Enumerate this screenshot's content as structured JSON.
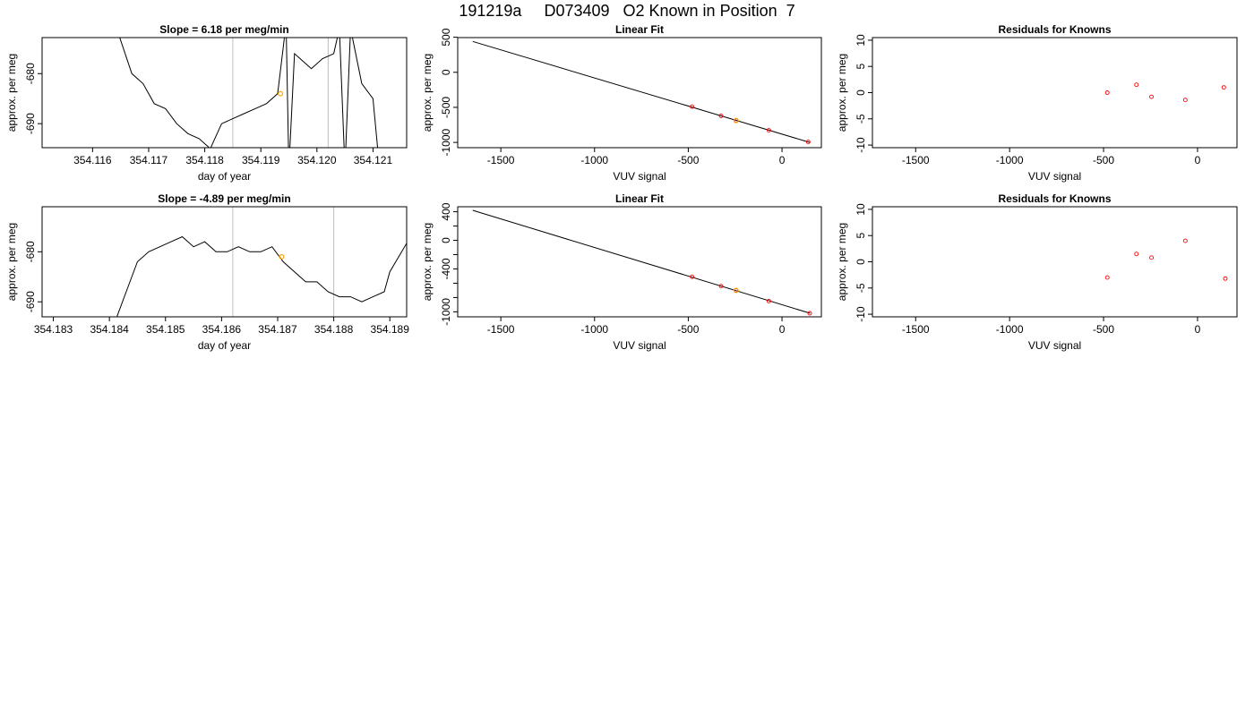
{
  "page_title": "191219a     D073409   O2 Known in Position  7",
  "chart_data": [
    {
      "id": "r1-trace",
      "type": "line",
      "title": "Slope =  6.18  per meg/min",
      "xlabel": "day of year",
      "ylabel": "approx. per meg",
      "xlim": [
        354.1151,
        354.1216
      ],
      "ylim": [
        -694.8,
        -672.8
      ],
      "xticks": [
        354.116,
        354.117,
        354.118,
        354.119,
        354.12,
        354.121
      ],
      "xtick_labels": [
        "354.116",
        "354.117",
        "354.118",
        "354.119",
        "354.120",
        "354.121"
      ],
      "yticks": [
        -690,
        -680
      ],
      "ytick_labels": [
        "-690",
        "-680"
      ],
      "vlines": [
        354.1185,
        354.1202
      ],
      "x": [
        354.1164,
        354.1167,
        354.1169,
        354.1171,
        354.1173,
        354.1175,
        354.1177,
        354.1179,
        354.1181,
        354.1183,
        354.1185,
        354.1187,
        354.1189,
        354.1191,
        354.1193,
        354.11945,
        354.1195,
        354.1196,
        354.1197,
        354.1199,
        354.1201,
        354.1203,
        354.1204,
        354.1205,
        354.1206,
        354.1208,
        354.121,
        354.1211
      ],
      "y": [
        -670,
        -680,
        -682,
        -686,
        -687,
        -690,
        -692,
        -693,
        -695,
        -690,
        -689,
        -688,
        -687,
        -686,
        -684,
        -670,
        -699,
        -676,
        -677,
        -679,
        -677,
        -676,
        -671,
        -699,
        -671,
        -682,
        -685,
        -697
      ],
      "highlight_points": [
        {
          "x": 354.11935,
          "y": -684
        }
      ],
      "colors": {
        "line": "#000000",
        "highlight": "#ffa500",
        "vline": "#bebebe"
      }
    },
    {
      "id": "r1-fit",
      "type": "line",
      "title": "Linear Fit",
      "xlabel": "VUV signal",
      "ylabel": "approx. per meg",
      "xlim": [
        -1730,
        210
      ],
      "ylim": [
        -1075,
        495
      ],
      "xticks": [
        -1500,
        -1000,
        -500,
        0
      ],
      "xtick_labels": [
        "-1500",
        "-1000",
        "-500",
        "0"
      ],
      "yticks": [
        -1000,
        -500,
        0,
        500
      ],
      "ytick_labels": [
        "-1000",
        "-500",
        "0",
        "500"
      ],
      "line": {
        "x": [
          -1650,
          148
        ],
        "y": [
          440,
          -1000
        ]
      },
      "points": [
        {
          "x": -480,
          "y": -490
        },
        {
          "x": -325,
          "y": -622
        },
        {
          "x": -245,
          "y": -688
        },
        {
          "x": -70,
          "y": -827
        },
        {
          "x": 140,
          "y": -993
        }
      ],
      "highlight_points": [
        {
          "x": -245,
          "y": -688
        }
      ],
      "colors": {
        "line": "#000000",
        "points": "#ff0000",
        "highlight": "#ffa500"
      }
    },
    {
      "id": "r1-resid",
      "type": "scatter",
      "title": "Residuals for Knowns",
      "xlabel": "VUV signal",
      "ylabel": "approx. per meg",
      "xlim": [
        -1730,
        210
      ],
      "ylim": [
        -10.5,
        10.5
      ],
      "xticks": [
        -1500,
        -1000,
        -500,
        0
      ],
      "xtick_labels": [
        "-1500",
        "-1000",
        "-500",
        "0"
      ],
      "yticks": [
        -10,
        -5,
        0,
        5,
        10
      ],
      "ytick_labels": [
        "-10",
        "-5",
        "0",
        "5",
        "10"
      ],
      "points": [
        {
          "x": -480,
          "y": 0
        },
        {
          "x": -325,
          "y": 1.5
        },
        {
          "x": -245,
          "y": -0.8
        },
        {
          "x": -65,
          "y": -1.4
        },
        {
          "x": 140,
          "y": 1
        }
      ],
      "colors": {
        "points": "#ff0000"
      }
    },
    {
      "id": "r2-trace",
      "type": "line",
      "title": "Slope =  -4.89  per meg/min",
      "xlabel": "day of year",
      "ylabel": "approx. per meg",
      "xlim": [
        354.1828,
        354.1893
      ],
      "ylim": [
        -693,
        -671
      ],
      "xticks": [
        354.183,
        354.184,
        354.185,
        354.186,
        354.187,
        354.188,
        354.189
      ],
      "xtick_labels": [
        "354.183",
        "354.184",
        "354.185",
        "354.186",
        "354.187",
        "354.188",
        "354.189"
      ],
      "yticks": [
        -690,
        -680
      ],
      "ytick_labels": [
        "-690",
        "-680"
      ],
      "vlines": [
        354.1862,
        354.188
      ],
      "x": [
        354.1841,
        354.1843,
        354.1845,
        354.1847,
        354.1849,
        354.1851,
        354.1853,
        354.1855,
        354.1857,
        354.1859,
        354.1861,
        354.1863,
        354.1865,
        354.1867,
        354.1869,
        354.1871,
        354.1873,
        354.1875,
        354.1877,
        354.1879,
        354.1881,
        354.1883,
        354.1885,
        354.1887,
        354.1889,
        354.189,
        354.19
      ],
      "y": [
        -694,
        -688,
        -682,
        -680,
        -679,
        -678,
        -677,
        -679,
        -678,
        -680,
        -680,
        -679,
        -680,
        -680,
        -679,
        -682,
        -684,
        -686,
        -686,
        -688,
        -689,
        -689,
        -690,
        -689,
        -688,
        -684,
        -665
      ],
      "highlight_points": [
        {
          "x": 354.18707,
          "y": -681
        }
      ],
      "colors": {
        "line": "#000000",
        "highlight": "#ffa500",
        "vline": "#bebebe"
      }
    },
    {
      "id": "r2-fit",
      "type": "line",
      "title": "Linear Fit",
      "xlabel": "VUV signal",
      "ylabel": "approx. per meg",
      "xlim": [
        -1730,
        210
      ],
      "ylim": [
        -1070,
        470
      ],
      "xticks": [
        -1500,
        -1000,
        -500,
        0
      ],
      "xtick_labels": [
        "-1500",
        "-1000",
        "-500",
        "0"
      ],
      "yticks": [
        -1000,
        -800,
        -600,
        -400,
        -200,
        0,
        200,
        400
      ],
      "ytick_labels": [
        "-1000",
        "",
        "",
        "-400",
        "",
        "0",
        "",
        "400"
      ],
      "line": {
        "x": [
          -1650,
          150
        ],
        "y": [
          420,
          -1020
        ]
      },
      "points": [
        {
          "x": -480,
          "y": -510
        },
        {
          "x": -325,
          "y": -640
        },
        {
          "x": -245,
          "y": -700
        },
        {
          "x": -70,
          "y": -850
        },
        {
          "x": 148,
          "y": -1020
        }
      ],
      "highlight_points": [
        {
          "x": -245,
          "y": -700
        }
      ],
      "colors": {
        "line": "#000000",
        "points": "#ff0000",
        "highlight": "#ffa500"
      }
    },
    {
      "id": "r2-resid",
      "type": "scatter",
      "title": "Residuals for Knowns",
      "xlabel": "VUV signal",
      "ylabel": "approx. per meg",
      "xlim": [
        -1730,
        210
      ],
      "ylim": [
        -10.5,
        10.5
      ],
      "xticks": [
        -1500,
        -1000,
        -500,
        0
      ],
      "xtick_labels": [
        "-1500",
        "-1000",
        "-500",
        "0"
      ],
      "yticks": [
        -10,
        -5,
        0,
        5,
        10
      ],
      "ytick_labels": [
        "-10",
        "-5",
        "0",
        "5",
        "10"
      ],
      "points": [
        {
          "x": -480,
          "y": -3
        },
        {
          "x": -325,
          "y": 1.5
        },
        {
          "x": -245,
          "y": 0.8
        },
        {
          "x": -65,
          "y": 4
        },
        {
          "x": 148,
          "y": -3.2
        }
      ],
      "colors": {
        "points": "#ff0000"
      }
    }
  ]
}
